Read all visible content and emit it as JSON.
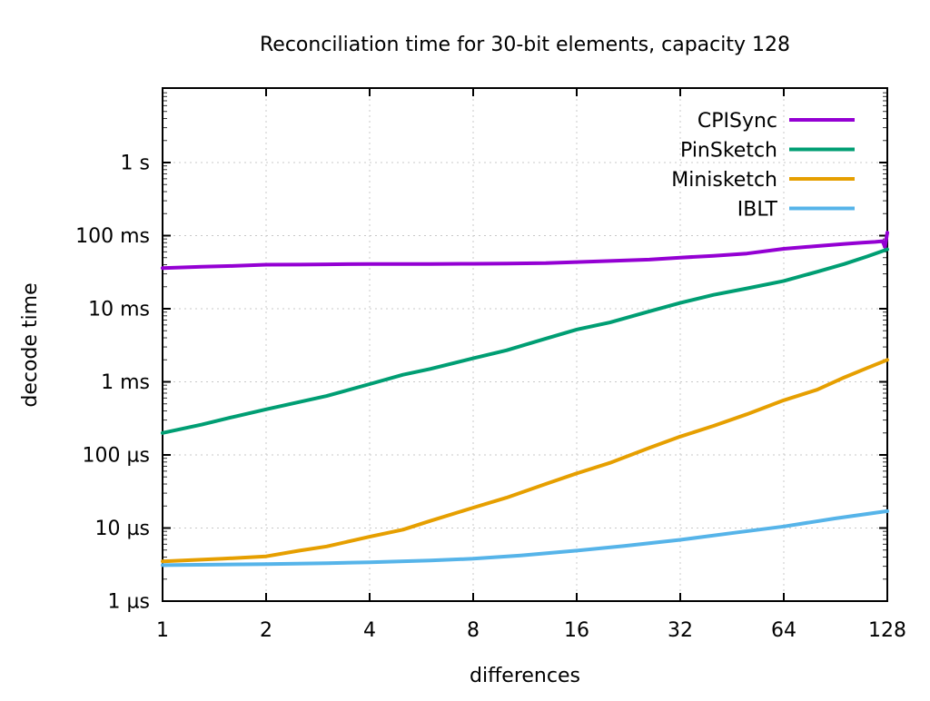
{
  "chart_data": {
    "type": "line",
    "title": "Reconciliation time for 30-bit elements, capacity 128",
    "xlabel": "differences",
    "ylabel": "decode time",
    "x_scale": "log2",
    "y_scale": "log10",
    "xlim": [
      1,
      128
    ],
    "ylim_seconds": [
      1e-06,
      10
    ],
    "grid": true,
    "legend_position": "top-right",
    "grid_color": "#c8c8c8",
    "border_color": "#000000",
    "x_ticks": [
      1,
      2,
      4,
      8,
      16,
      32,
      64,
      128
    ],
    "y_ticks": [
      {
        "value": 1e-06,
        "label": "1 µs"
      },
      {
        "value": 1e-05,
        "label": "10 µs"
      },
      {
        "value": 0.0001,
        "label": "100 µs"
      },
      {
        "value": 0.001,
        "label": "1 ms"
      },
      {
        "value": 0.01,
        "label": "10 ms"
      },
      {
        "value": 0.1,
        "label": "100 ms"
      },
      {
        "value": 1,
        "label": "1 s"
      }
    ],
    "series": [
      {
        "name": "CPISync",
        "color": "#9400d3",
        "x": [
          1,
          1.3,
          1.6,
          2,
          2.5,
          3,
          4,
          5,
          6,
          8,
          10,
          13,
          16,
          20,
          26,
          32,
          40,
          50,
          64,
          80,
          96,
          108,
          118,
          124,
          126,
          128
        ],
        "y_seconds": [
          0.036,
          0.0375,
          0.0385,
          0.04,
          0.0402,
          0.0405,
          0.041,
          0.0408,
          0.041,
          0.0412,
          0.0415,
          0.042,
          0.0435,
          0.045,
          0.047,
          0.05,
          0.053,
          0.057,
          0.066,
          0.072,
          0.077,
          0.08,
          0.082,
          0.084,
          0.07,
          0.11
        ]
      },
      {
        "name": "PinSketch",
        "color": "#009e73",
        "x": [
          1,
          1.3,
          1.6,
          2,
          2.5,
          3,
          4,
          5,
          6,
          8,
          10,
          13,
          16,
          20,
          26,
          32,
          40,
          50,
          64,
          80,
          96,
          112,
          128
        ],
        "y_seconds": [
          0.0002,
          0.00026,
          0.00033,
          0.00042,
          0.00053,
          0.00064,
          0.00093,
          0.00125,
          0.0015,
          0.0021,
          0.0027,
          0.0039,
          0.0052,
          0.0065,
          0.0092,
          0.012,
          0.0155,
          0.019,
          0.024,
          0.032,
          0.041,
          0.052,
          0.065
        ]
      },
      {
        "name": "Minisketch",
        "color": "#e69f00",
        "x": [
          1,
          1.5,
          2,
          2.5,
          3,
          4,
          5,
          6,
          8,
          10,
          13,
          16,
          20,
          26,
          32,
          40,
          50,
          64,
          80,
          96,
          112,
          128
        ],
        "y_seconds": [
          3.5e-06,
          3.8e-06,
          4.1e-06,
          4.9e-06,
          5.6e-06,
          7.6e-06,
          9.5e-06,
          1.25e-05,
          1.9e-05,
          2.6e-05,
          4e-05,
          5.6e-05,
          7.8e-05,
          0.000125,
          0.000178,
          0.00025,
          0.00036,
          0.00056,
          0.00078,
          0.00115,
          0.00155,
          0.002
        ]
      },
      {
        "name": "IBLT",
        "color": "#56b4e9",
        "x": [
          1,
          2,
          3,
          4,
          6,
          8,
          11,
          16,
          22,
          32,
          45,
          64,
          90,
          128
        ],
        "y_seconds": [
          3.1e-06,
          3.2e-06,
          3.3e-06,
          3.4e-06,
          3.6e-06,
          3.8e-06,
          4.2e-06,
          4.9e-06,
          5.7e-06,
          6.9e-06,
          8.5e-06,
          1.05e-05,
          1.35e-05,
          1.7e-05
        ]
      }
    ]
  }
}
